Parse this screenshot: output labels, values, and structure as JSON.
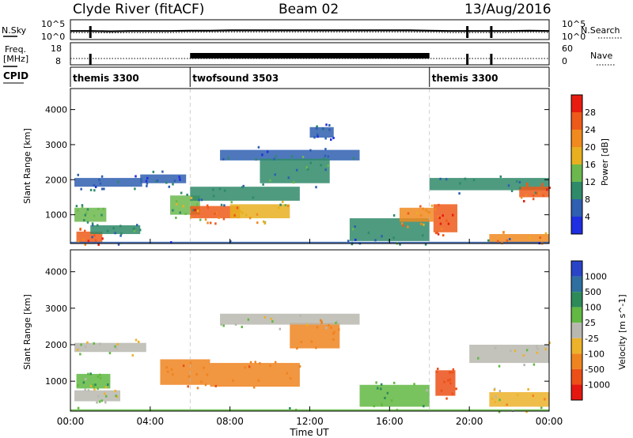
{
  "header": {
    "station": "Clyde River (fitACF)",
    "beam": "Beam 02",
    "date": "13/Aug/2016"
  },
  "chart_data": [
    {
      "type": "line",
      "panel": "noise",
      "left_label": "N.Sky",
      "right_label": "N.Search",
      "left_ticks": [
        "10^5",
        "10^0"
      ],
      "right_ticks": [
        "10^5",
        "10^0"
      ],
      "x": [
        0,
        1,
        2,
        3,
        4,
        5,
        6,
        7,
        8,
        9,
        10,
        11,
        12,
        13,
        14,
        15,
        16,
        17,
        18,
        19,
        20,
        21,
        22,
        23,
        24
      ],
      "series": [
        {
          "values": [
            2.2,
            2.2,
            2.1,
            2.2,
            2.2,
            2.2,
            2.3,
            2.3,
            2.4,
            2.4,
            2.4,
            2.4,
            2.4,
            2.4,
            2.4,
            2.4,
            2.4,
            2.4,
            2.3,
            2.2,
            2.2,
            2.2,
            2.2,
            2.3,
            2.2
          ]
        }
      ],
      "drops": [
        1.0,
        19.9,
        21.1
      ],
      "ylim": [
        0,
        5
      ]
    },
    {
      "type": "line",
      "panel": "frequency",
      "left_label_top": "Freq.",
      "left_label_bottom": "[MHz]",
      "right_label": "Nave",
      "left_ticks": [
        "18",
        "8"
      ],
      "right_ticks": [
        "60",
        "0"
      ],
      "dense_band": [
        6.0,
        18.0
      ],
      "drops": [
        1.0,
        19.9,
        21.1
      ],
      "freq_mhz": 10.5,
      "ylim": [
        8,
        18
      ]
    },
    {
      "type": "table",
      "panel": "cpid",
      "label": "CPID",
      "segments": [
        {
          "start": 0,
          "end": 6,
          "name": "themis 3300"
        },
        {
          "start": 6,
          "end": 18,
          "name": "twofsound 3503"
        },
        {
          "start": 18,
          "end": 24,
          "name": "themis 3300"
        }
      ]
    },
    {
      "type": "heatmap",
      "panel": "power",
      "ylabel": "Slant Range [km]",
      "yticks": [
        1000,
        2000,
        3000,
        4000
      ],
      "ylim": [
        180,
        4600
      ],
      "colorbar_label": "Power [dB]",
      "colorbar_ticks": [
        4,
        8,
        12,
        16,
        20,
        24,
        28
      ],
      "colorbar_colors": [
        "#1f2ee0",
        "#2f5fb0",
        "#2f8a6a",
        "#6cb84e",
        "#e8b020",
        "#f08a1e",
        "#ee5a1a",
        "#e81c10"
      ],
      "colorbar_range": [
        0,
        30
      ],
      "regions": [
        {
          "t0": 0.2,
          "t1": 3.6,
          "r0": 1800,
          "r1": 2050,
          "value": 7
        },
        {
          "t0": 0.2,
          "t1": 1.8,
          "r0": 800,
          "r1": 1200,
          "value": 12
        },
        {
          "t0": 0.3,
          "t1": 1.6,
          "r0": 200,
          "r1": 520,
          "value": 26
        },
        {
          "t0": 1.0,
          "t1": 3.5,
          "r0": 450,
          "r1": 700,
          "value": 9
        },
        {
          "t0": 3.5,
          "t1": 5.8,
          "r0": 1900,
          "r1": 2150,
          "value": 6
        },
        {
          "t0": 5.0,
          "t1": 6.5,
          "r0": 1000,
          "r1": 1550,
          "value": 14
        },
        {
          "t0": 6.0,
          "t1": 8.5,
          "r0": 900,
          "r1": 1250,
          "value": 25
        },
        {
          "t0": 8.0,
          "t1": 11.0,
          "r0": 900,
          "r1": 1300,
          "value": 18
        },
        {
          "t0": 6.0,
          "t1": 11.5,
          "r0": 1400,
          "r1": 1800,
          "value": 11
        },
        {
          "t0": 7.5,
          "t1": 14.5,
          "r0": 2550,
          "r1": 2850,
          "value": 7
        },
        {
          "t0": 9.5,
          "t1": 13.0,
          "r0": 1900,
          "r1": 2600,
          "value": 10
        },
        {
          "t0": 12.0,
          "t1": 13.2,
          "r0": 3200,
          "r1": 3500,
          "value": 5
        },
        {
          "t0": 14.0,
          "t1": 18.0,
          "r0": 250,
          "r1": 900,
          "value": 10
        },
        {
          "t0": 16.5,
          "t1": 18.2,
          "r0": 800,
          "r1": 1200,
          "value": 22
        },
        {
          "t0": 18.2,
          "t1": 19.4,
          "r0": 500,
          "r1": 1300,
          "value": 26
        },
        {
          "t0": 18.0,
          "t1": 24.0,
          "r0": 1700,
          "r1": 2050,
          "value": 8
        },
        {
          "t0": 22.5,
          "t1": 24.0,
          "r0": 1500,
          "r1": 1800,
          "value": 26
        },
        {
          "t0": 21.0,
          "t1": 24.0,
          "r0": 180,
          "r1": 450,
          "value": 23
        },
        {
          "t0": 0.0,
          "t1": 24.0,
          "r0": 180,
          "r1": 230,
          "value": 6
        }
      ]
    },
    {
      "type": "heatmap",
      "panel": "velocity",
      "ylabel": "Slant Range [km]",
      "yticks": [
        1000,
        2000,
        3000,
        4000
      ],
      "ylim": [
        180,
        4600
      ],
      "colorbar_label": "Velocity [m s^-1]",
      "colorbar_ticks": [
        1000,
        500,
        100,
        25,
        -25,
        -100,
        -500,
        -1000
      ],
      "colorbar_colors": [
        "#2a44c8",
        "#2f6fa0",
        "#2f8a5a",
        "#62b842",
        "#b8b8b0",
        "#ecb22a",
        "#ee8420",
        "#ec5018",
        "#e41810"
      ],
      "regions": [
        {
          "t0": 0.2,
          "t1": 3.8,
          "r0": 1800,
          "r1": 2050,
          "value": 0
        },
        {
          "t0": 0.2,
          "t1": 2.5,
          "r0": 450,
          "r1": 750,
          "value": 0
        },
        {
          "t0": 0.3,
          "t1": 2.0,
          "r0": 800,
          "r1": 1200,
          "value": 60
        },
        {
          "t0": 4.5,
          "t1": 7.0,
          "r0": 900,
          "r1": 1600,
          "value": -450
        },
        {
          "t0": 7.0,
          "t1": 11.5,
          "r0": 850,
          "r1": 1500,
          "value": -420
        },
        {
          "t0": 11.0,
          "t1": 13.5,
          "r0": 1900,
          "r1": 2600,
          "value": -300
        },
        {
          "t0": 7.5,
          "t1": 14.5,
          "r0": 2550,
          "r1": 2850,
          "value": 0
        },
        {
          "t0": 14.5,
          "t1": 18.0,
          "r0": 300,
          "r1": 900,
          "value": 60
        },
        {
          "t0": 18.3,
          "t1": 19.3,
          "r0": 600,
          "r1": 1300,
          "value": -600
        },
        {
          "t0": 20.0,
          "t1": 24.0,
          "r0": 1500,
          "r1": 2000,
          "value": 0
        },
        {
          "t0": 21.0,
          "t1": 24.0,
          "r0": 300,
          "r1": 700,
          "value": -60
        },
        {
          "t0": 0.0,
          "t1": 24.0,
          "r0": 180,
          "r1": 230,
          "value": 40
        }
      ]
    }
  ],
  "x_axis": {
    "ticks": [
      "00:00",
      "04:00",
      "08:00",
      "12:00",
      "16:00",
      "20:00",
      "00:00"
    ],
    "label": "Time UT",
    "range": [
      0,
      24
    ]
  }
}
